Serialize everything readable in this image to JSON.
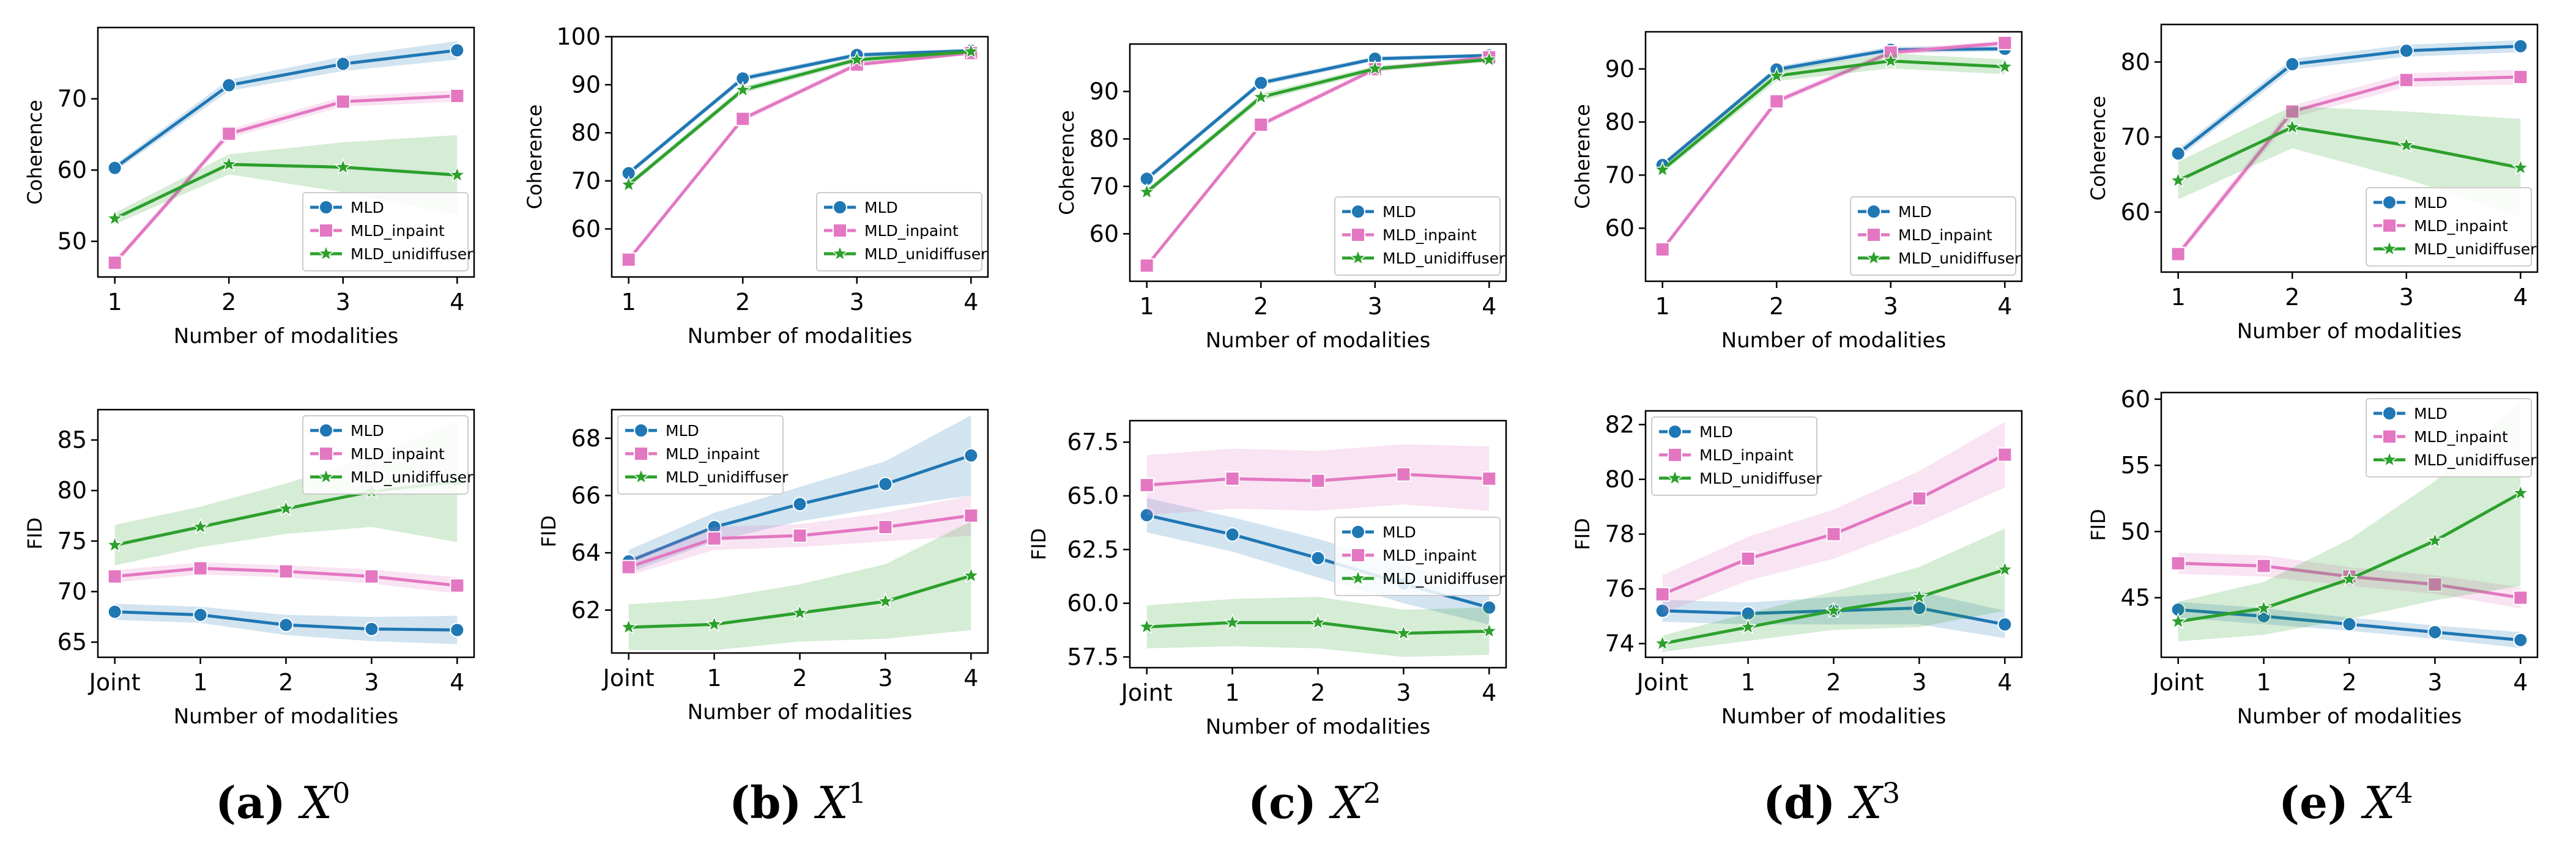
{
  "legend_labels": [
    "MLD",
    "MLD_inpaint",
    "MLD_unidiffuser"
  ],
  "colors": {
    "MLD": "#1f77b4",
    "MLD_inpaint": "#e377c2",
    "MLD_unidiffuser": "#2ca02c"
  },
  "subfigures": [
    {
      "label": "(a)",
      "var": "X",
      "sup": "0"
    },
    {
      "label": "(b)",
      "var": "X",
      "sup": "1"
    },
    {
      "label": "(c)",
      "var": "X",
      "sup": "2"
    },
    {
      "label": "(d)",
      "var": "X",
      "sup": "3"
    },
    {
      "label": "(e)",
      "var": "X",
      "sup": "4"
    }
  ],
  "chart_data": [
    {
      "type": "line",
      "panel": "(a) X^0 coherence",
      "xlabel": "Number of modalities",
      "ylabel": "Coherence",
      "categories": [
        "1",
        "2",
        "3",
        "4"
      ],
      "ylim": [
        45,
        80
      ],
      "yticks": [
        "50",
        "60",
        "70"
      ],
      "legend": "bottom-right",
      "series": [
        {
          "name": "MLD",
          "values": [
            60.3,
            71.9,
            74.9,
            76.8
          ],
          "band": [
            0.5,
            0.8,
            1.0,
            1.3
          ]
        },
        {
          "name": "MLD_inpaint",
          "values": [
            47.0,
            65.1,
            69.6,
            70.4
          ],
          "band": [
            0.4,
            0.6,
            0.7,
            0.8
          ]
        },
        {
          "name": "MLD_unidiffuser",
          "values": [
            53.2,
            60.8,
            60.4,
            59.3
          ],
          "band": [
            0.8,
            1.4,
            3.5,
            5.6
          ]
        }
      ]
    },
    {
      "type": "line",
      "panel": "(b) X^1 coherence",
      "xlabel": "Number of modalities",
      "ylabel": "Coherence",
      "categories": [
        "1",
        "2",
        "3",
        "4"
      ],
      "ylim": [
        50,
        100
      ],
      "yticks": [
        "60",
        "70",
        "80",
        "90",
        "100"
      ],
      "legend": "bottom-right",
      "series": [
        {
          "name": "MLD",
          "values": [
            71.6,
            91.3,
            96.2,
            97.1
          ],
          "band": [
            0.6,
            0.6,
            0.5,
            0.4
          ]
        },
        {
          "name": "MLD_inpaint",
          "values": [
            53.6,
            82.9,
            94.2,
            96.6
          ],
          "band": [
            0.5,
            0.6,
            0.5,
            0.4
          ]
        },
        {
          "name": "MLD_unidiffuser",
          "values": [
            69.2,
            88.9,
            95.2,
            96.9
          ],
          "band": [
            0.6,
            0.7,
            0.6,
            0.5
          ]
        }
      ]
    },
    {
      "type": "line",
      "panel": "(c) X^2 coherence",
      "xlabel": "Number of modalities",
      "ylabel": "Coherence",
      "categories": [
        "1",
        "2",
        "3",
        "4"
      ],
      "ylim": [
        50,
        100
      ],
      "yticks": [
        "60",
        "70",
        "80",
        "90"
      ],
      "legend": "bottom-right",
      "series": [
        {
          "name": "MLD",
          "values": [
            71.6,
            91.8,
            96.9,
            97.6
          ],
          "band": [
            0.6,
            0.6,
            0.5,
            0.4
          ]
        },
        {
          "name": "MLD_inpaint",
          "values": [
            53.3,
            83.0,
            94.7,
            97.2
          ],
          "band": [
            0.5,
            0.6,
            0.5,
            0.4
          ]
        },
        {
          "name": "MLD_unidiffuser",
          "values": [
            68.8,
            88.8,
            94.8,
            96.7
          ],
          "band": [
            0.6,
            0.8,
            0.6,
            0.5
          ]
        }
      ]
    },
    {
      "type": "line",
      "panel": "(d) X^3 coherence",
      "xlabel": "Number of modalities",
      "ylabel": "Coherence",
      "categories": [
        "1",
        "2",
        "3",
        "4"
      ],
      "ylim": [
        50,
        97
      ],
      "yticks": [
        "60",
        "70",
        "80",
        "90"
      ],
      "legend": "bottom-right",
      "series": [
        {
          "name": "MLD",
          "values": [
            71.9,
            89.9,
            93.6,
            93.8
          ],
          "band": [
            0.5,
            0.6,
            0.6,
            0.5
          ]
        },
        {
          "name": "MLD_inpaint",
          "values": [
            56.0,
            83.9,
            93.1,
            94.9
          ],
          "band": [
            0.5,
            0.6,
            0.6,
            0.5
          ]
        },
        {
          "name": "MLD_unidiffuser",
          "values": [
            71.0,
            88.7,
            91.5,
            90.4
          ],
          "band": [
            0.6,
            1.0,
            1.4,
            1.4
          ]
        }
      ]
    },
    {
      "type": "line",
      "panel": "(e) X^4 coherence",
      "xlabel": "Number of modalities",
      "ylabel": "Coherence",
      "categories": [
        "1",
        "2",
        "3",
        "4"
      ],
      "ylim": [
        52,
        85
      ],
      "yticks": [
        "60",
        "70",
        "80"
      ],
      "legend": "bottom-right",
      "series": [
        {
          "name": "MLD",
          "values": [
            67.8,
            79.7,
            81.5,
            82.1
          ],
          "band": [
            0.6,
            0.7,
            0.8,
            0.8
          ]
        },
        {
          "name": "MLD_inpaint",
          "values": [
            54.4,
            73.4,
            77.6,
            78.0
          ],
          "band": [
            0.5,
            0.8,
            0.9,
            1.0
          ]
        },
        {
          "name": "MLD_unidiffuser",
          "values": [
            64.2,
            71.3,
            68.9,
            65.9
          ],
          "band": [
            2.5,
            2.8,
            4.5,
            6.5
          ]
        }
      ]
    },
    {
      "type": "line",
      "panel": "(a) X^0 FID",
      "xlabel": "Number of modalities",
      "ylabel": "FID",
      "categories": [
        "Joint",
        "1",
        "2",
        "3",
        "4"
      ],
      "ylim": [
        63.5,
        88
      ],
      "yticks": [
        "65",
        "70",
        "75",
        "80",
        "85"
      ],
      "legend": "top-right",
      "series": [
        {
          "name": "MLD",
          "values": [
            68.0,
            67.7,
            66.7,
            66.3,
            66.2
          ],
          "band": [
            0.8,
            0.8,
            1.0,
            1.2,
            1.4
          ]
        },
        {
          "name": "MLD_inpaint",
          "values": [
            71.5,
            72.3,
            72.0,
            71.5,
            70.6
          ],
          "band": [
            0.6,
            0.6,
            0.6,
            0.7,
            0.8
          ]
        },
        {
          "name": "MLD_unidiffuser",
          "values": [
            74.6,
            76.4,
            78.2,
            79.9,
            80.9
          ],
          "band": [
            2.0,
            2.0,
            2.5,
            3.5,
            6.0
          ]
        }
      ]
    },
    {
      "type": "line",
      "panel": "(b) X^1 FID",
      "xlabel": "Number of modalities",
      "ylabel": "FID",
      "categories": [
        "Joint",
        "1",
        "2",
        "3",
        "4"
      ],
      "ylim": [
        60.5,
        69
      ],
      "yticks": [
        "62",
        "64",
        "66",
        "68"
      ],
      "legend": "top-left",
      "series": [
        {
          "name": "MLD",
          "values": [
            63.7,
            64.9,
            65.7,
            66.4,
            67.4
          ],
          "band": [
            0.4,
            0.5,
            0.6,
            0.8,
            1.4
          ]
        },
        {
          "name": "MLD_inpaint",
          "values": [
            63.5,
            64.5,
            64.6,
            64.9,
            65.3
          ],
          "band": [
            0.3,
            0.4,
            0.4,
            0.5,
            0.7
          ]
        },
        {
          "name": "MLD_unidiffuser",
          "values": [
            61.4,
            61.5,
            61.9,
            62.3,
            63.2
          ],
          "band": [
            0.8,
            0.9,
            1.0,
            1.3,
            1.9
          ]
        }
      ]
    },
    {
      "type": "line",
      "panel": "(c) X^2 FID",
      "xlabel": "Number of modalities",
      "ylabel": "FID",
      "categories": [
        "Joint",
        "1",
        "2",
        "3",
        "4"
      ],
      "ylim": [
        57,
        68.5
      ],
      "yticks": [
        "57.5",
        "60.0",
        "62.5",
        "65.0",
        "67.5"
      ],
      "legend": "center-right",
      "series": [
        {
          "name": "MLD",
          "values": [
            64.1,
            63.2,
            62.1,
            60.9,
            59.8
          ],
          "band": [
            0.8,
            0.8,
            0.9,
            0.9,
            0.8
          ]
        },
        {
          "name": "MLD_inpaint",
          "values": [
            65.5,
            65.8,
            65.7,
            66.0,
            65.8
          ],
          "band": [
            1.4,
            1.4,
            1.4,
            1.4,
            1.5
          ]
        },
        {
          "name": "MLD_unidiffuser",
          "values": [
            58.9,
            59.1,
            59.1,
            58.6,
            58.7
          ],
          "band": [
            1.0,
            1.1,
            1.2,
            1.1,
            1.1
          ]
        }
      ]
    },
    {
      "type": "line",
      "panel": "(d) X^3 FID",
      "xlabel": "Number of modalities",
      "ylabel": "FID",
      "categories": [
        "Joint",
        "1",
        "2",
        "3",
        "4"
      ],
      "ylim": [
        73.5,
        82.5
      ],
      "yticks": [
        "74",
        "76",
        "78",
        "80",
        "82"
      ],
      "legend": "top-left",
      "series": [
        {
          "name": "MLD",
          "values": [
            75.2,
            75.1,
            75.2,
            75.3,
            74.7
          ],
          "band": [
            0.4,
            0.4,
            0.5,
            0.6,
            0.5
          ]
        },
        {
          "name": "MLD_inpaint",
          "values": [
            75.8,
            77.1,
            78.0,
            79.3,
            80.9
          ],
          "band": [
            0.7,
            0.8,
            0.9,
            1.0,
            1.2
          ]
        },
        {
          "name": "MLD_unidiffuser",
          "values": [
            74.0,
            74.6,
            75.2,
            75.7,
            76.7
          ],
          "band": [
            0.3,
            0.5,
            0.7,
            1.1,
            1.5
          ]
        }
      ]
    },
    {
      "type": "line",
      "panel": "(e) X^4 FID",
      "xlabel": "Number of modalities",
      "ylabel": "FID",
      "categories": [
        "Joint",
        "1",
        "2",
        "3",
        "4"
      ],
      "ylim": [
        40.5,
        60.5
      ],
      "yticks": [
        "45",
        "50",
        "55",
        "60"
      ],
      "legend": "top-right",
      "series": [
        {
          "name": "MLD",
          "values": [
            44.1,
            43.6,
            43.0,
            42.4,
            41.8
          ],
          "band": [
            0.6,
            0.6,
            0.5,
            0.5,
            0.6
          ]
        },
        {
          "name": "MLD_inpaint",
          "values": [
            47.6,
            47.4,
            46.6,
            46.0,
            45.0
          ],
          "band": [
            0.8,
            0.8,
            0.7,
            0.7,
            0.8
          ]
        },
        {
          "name": "MLD_unidiffuser",
          "values": [
            43.2,
            44.2,
            46.4,
            49.3,
            52.9
          ],
          "band": [
            1.5,
            2.0,
            3.0,
            4.5,
            7.0
          ]
        }
      ]
    }
  ]
}
